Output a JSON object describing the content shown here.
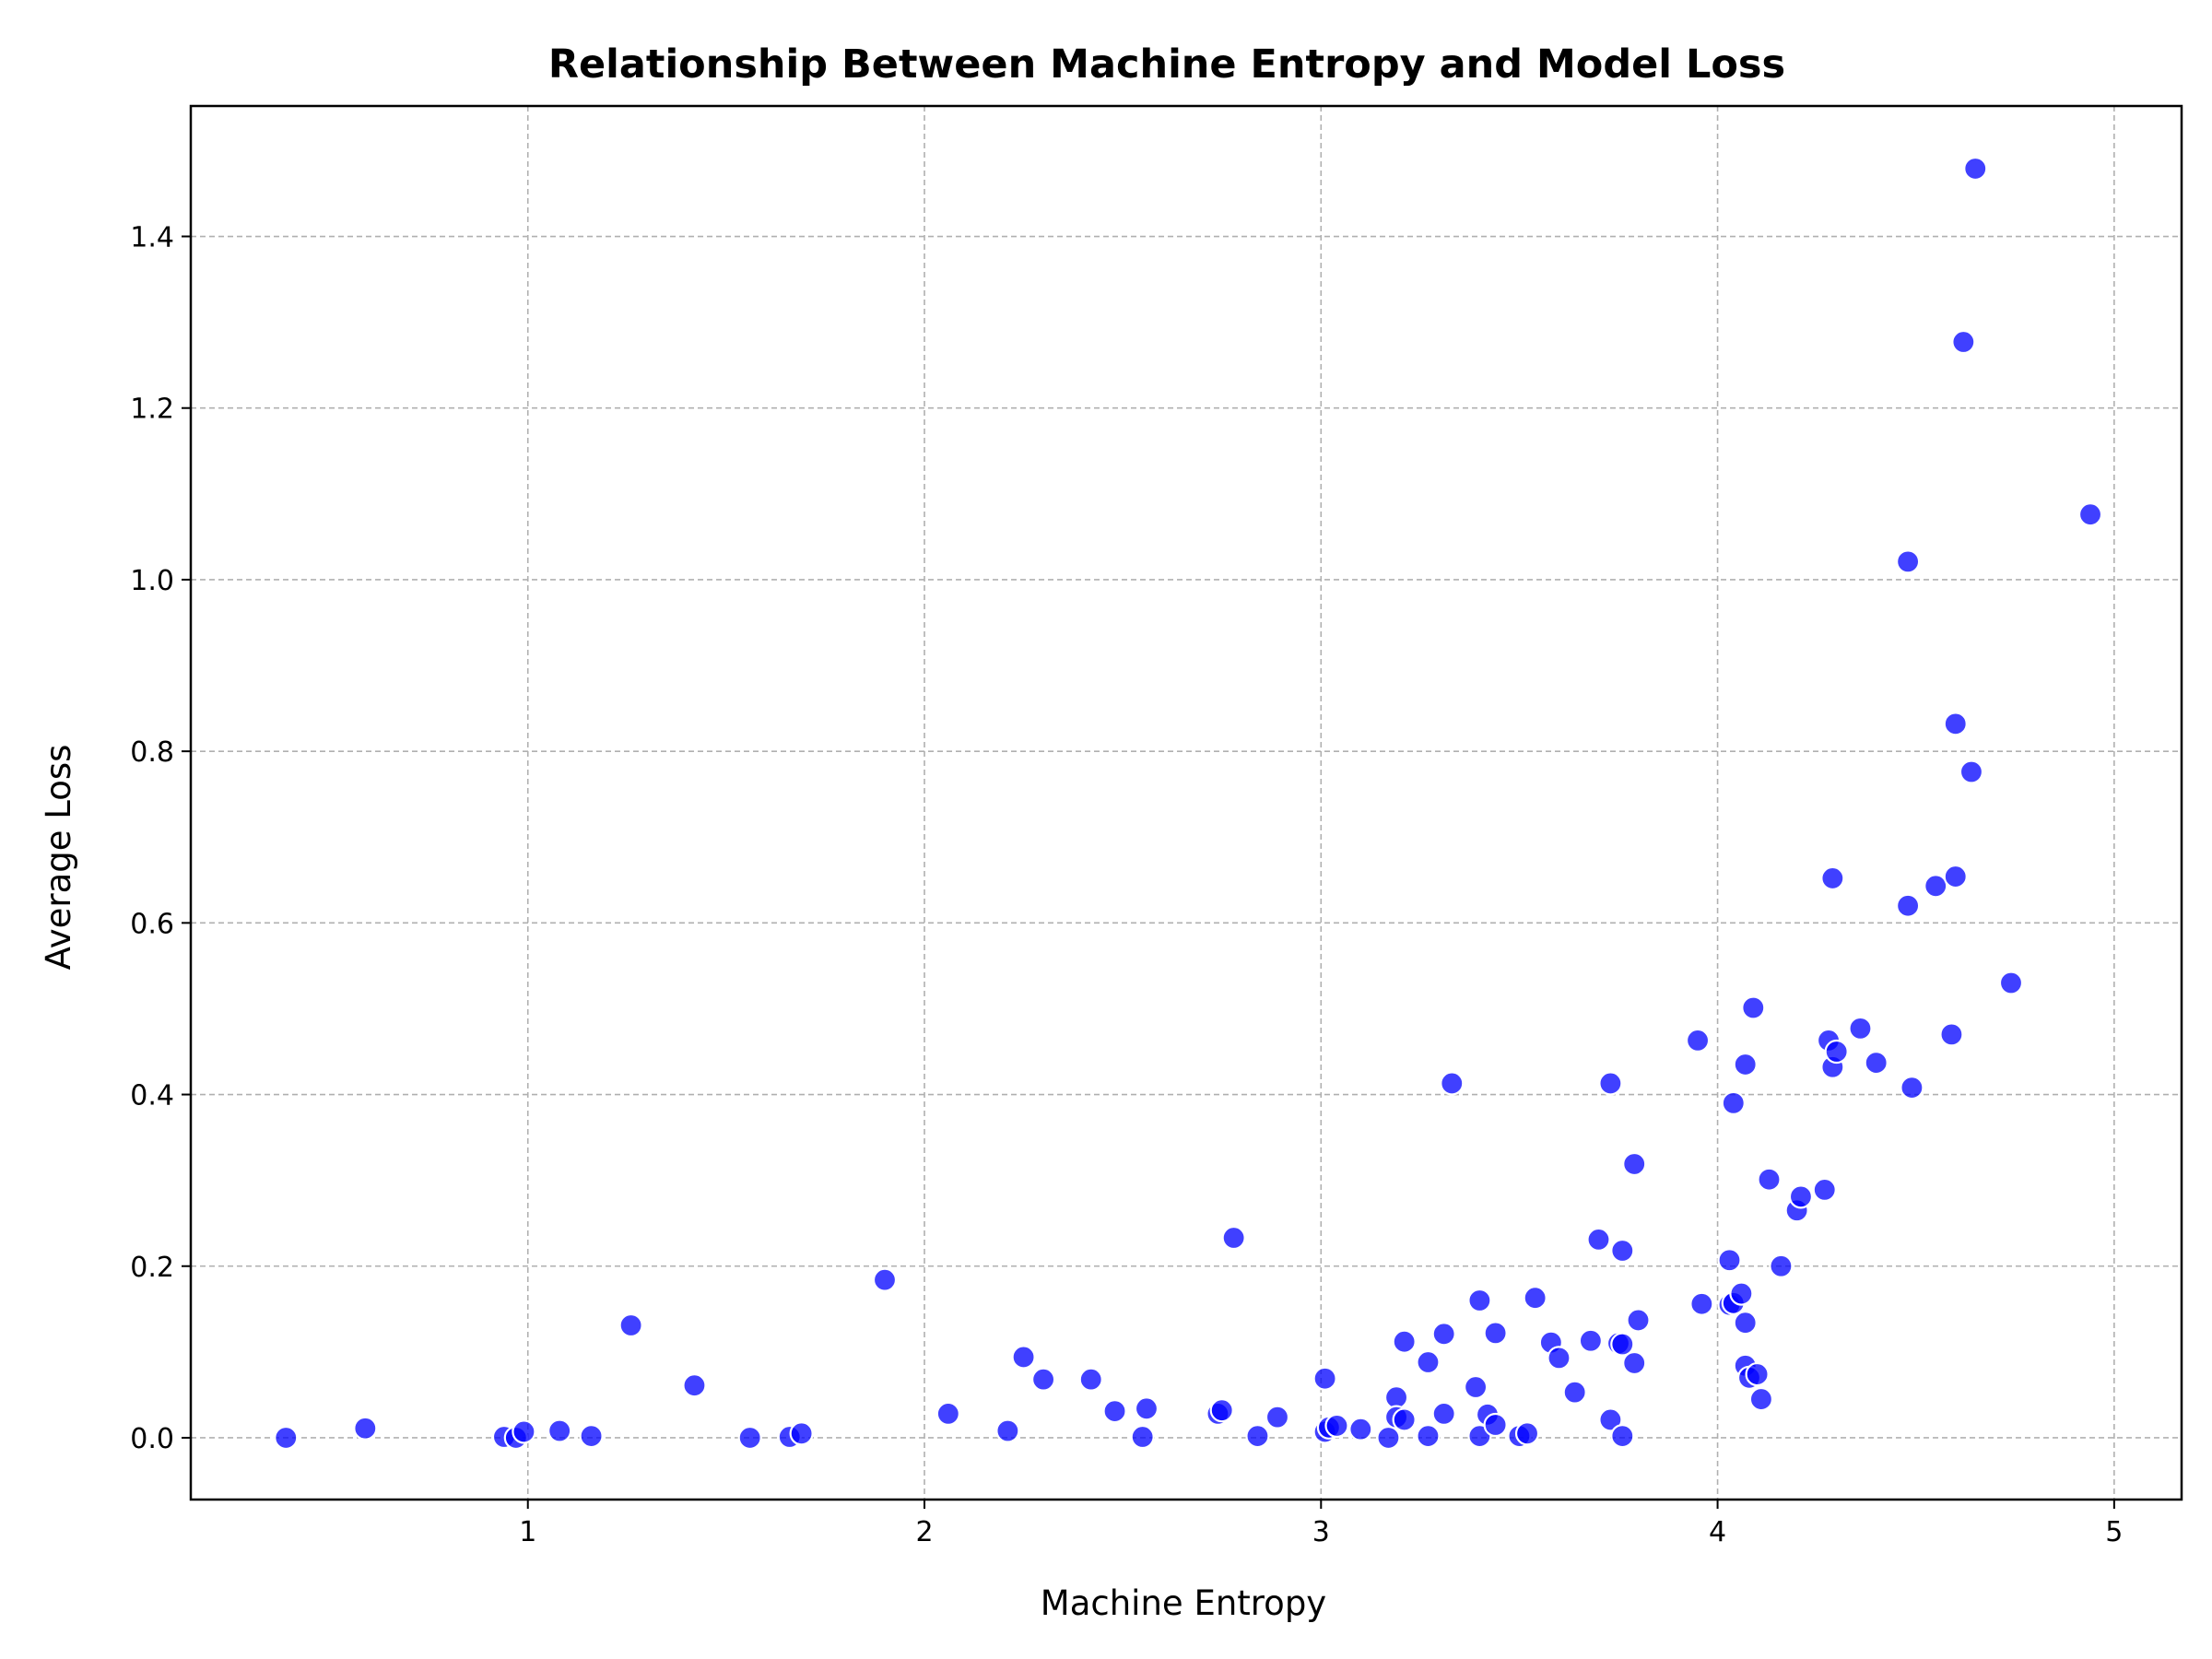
{
  "chart_data": {
    "type": "scatter",
    "title": "Relationship Between Machine Entropy and Model Loss",
    "xlabel": "Machine Entropy",
    "ylabel": "Average Loss",
    "xlim": [
      0.15,
      5.17
    ],
    "ylim": [
      -0.072,
      1.552
    ],
    "xticks": [
      1,
      2,
      3,
      4,
      5
    ],
    "xtick_labels": [
      "1",
      "2",
      "3",
      "4",
      "5"
    ],
    "yticks": [
      0.0,
      0.2,
      0.4,
      0.6,
      0.8,
      1.0,
      1.2,
      1.4
    ],
    "ytick_labels": [
      "0.0",
      "0.2",
      "0.4",
      "0.6",
      "0.8",
      "1.0",
      "1.2",
      "1.4"
    ],
    "grid": true,
    "marker_color": "#0000ff",
    "marker_edge_color": "#ffffff",
    "marker_alpha": 0.75,
    "series": [
      {
        "points": [
          [
            0.39,
            0.0
          ],
          [
            0.59,
            0.011
          ],
          [
            0.94,
            0.001
          ],
          [
            0.97,
            0.0
          ],
          [
            0.99,
            0.007
          ],
          [
            1.08,
            0.008
          ],
          [
            1.16,
            0.002
          ],
          [
            1.26,
            0.131
          ],
          [
            1.42,
            0.061
          ],
          [
            1.56,
            0.0
          ],
          [
            1.66,
            0.001
          ],
          [
            1.69,
            0.005
          ],
          [
            1.9,
            0.184
          ],
          [
            2.06,
            0.028
          ],
          [
            2.21,
            0.008
          ],
          [
            2.25,
            0.094
          ],
          [
            2.3,
            0.068
          ],
          [
            2.42,
            0.068
          ],
          [
            2.48,
            0.031
          ],
          [
            2.55,
            0.001
          ],
          [
            2.56,
            0.034
          ],
          [
            2.74,
            0.028
          ],
          [
            2.75,
            0.032
          ],
          [
            2.78,
            0.233
          ],
          [
            2.84,
            0.002
          ],
          [
            2.89,
            0.024
          ],
          [
            3.01,
            0.069
          ],
          [
            3.01,
            0.007
          ],
          [
            3.02,
            0.012
          ],
          [
            3.04,
            0.014
          ],
          [
            3.1,
            0.01
          ],
          [
            3.17,
            0.0
          ],
          [
            3.19,
            0.047
          ],
          [
            3.19,
            0.024
          ],
          [
            3.21,
            0.112
          ],
          [
            3.21,
            0.021
          ],
          [
            3.27,
            0.088
          ],
          [
            3.27,
            0.002
          ],
          [
            3.31,
            0.121
          ],
          [
            3.31,
            0.028
          ],
          [
            3.33,
            0.413
          ],
          [
            3.39,
            0.059
          ],
          [
            3.4,
            0.16
          ],
          [
            3.4,
            0.002
          ],
          [
            3.42,
            0.027
          ],
          [
            3.44,
            0.122
          ],
          [
            3.44,
            0.015
          ],
          [
            3.5,
            0.002
          ],
          [
            3.52,
            0.005
          ],
          [
            3.54,
            0.163
          ],
          [
            3.58,
            0.111
          ],
          [
            3.6,
            0.093
          ],
          [
            3.64,
            0.053
          ],
          [
            3.68,
            0.113
          ],
          [
            3.7,
            0.231
          ],
          [
            3.73,
            0.413
          ],
          [
            3.73,
            0.021
          ],
          [
            3.75,
            0.11
          ],
          [
            3.76,
            0.109
          ],
          [
            3.76,
            0.218
          ],
          [
            3.76,
            0.002
          ],
          [
            3.79,
            0.319
          ],
          [
            3.79,
            0.087
          ],
          [
            3.8,
            0.137
          ],
          [
            3.95,
            0.463
          ],
          [
            3.96,
            0.156
          ],
          [
            4.03,
            0.207
          ],
          [
            4.03,
            0.155
          ],
          [
            4.04,
            0.39
          ],
          [
            4.04,
            0.157
          ],
          [
            4.06,
            0.168
          ],
          [
            4.07,
            0.435
          ],
          [
            4.07,
            0.134
          ],
          [
            4.07,
            0.084
          ],
          [
            4.08,
            0.07
          ],
          [
            4.09,
            0.501
          ],
          [
            4.1,
            0.074
          ],
          [
            4.11,
            0.045
          ],
          [
            4.13,
            0.301
          ],
          [
            4.16,
            0.2
          ],
          [
            4.2,
            0.265
          ],
          [
            4.21,
            0.281
          ],
          [
            4.27,
            0.289
          ],
          [
            4.28,
            0.463
          ],
          [
            4.29,
            0.652
          ],
          [
            4.29,
            0.432
          ],
          [
            4.3,
            0.45
          ],
          [
            4.36,
            0.477
          ],
          [
            4.4,
            0.437
          ],
          [
            4.48,
            1.021
          ],
          [
            4.48,
            0.62
          ],
          [
            4.49,
            0.408
          ],
          [
            4.55,
            0.643
          ],
          [
            4.59,
            0.47
          ],
          [
            4.6,
            0.832
          ],
          [
            4.6,
            0.654
          ],
          [
            4.62,
            1.277
          ],
          [
            4.64,
            0.776
          ],
          [
            4.65,
            1.479
          ],
          [
            4.74,
            0.53
          ],
          [
            4.94,
            1.076
          ]
        ]
      }
    ]
  }
}
